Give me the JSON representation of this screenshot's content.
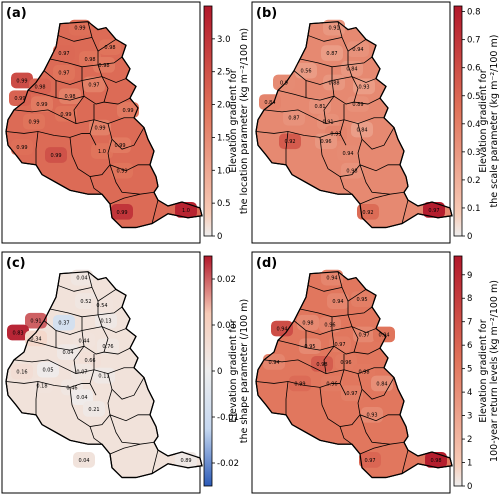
{
  "colors": {
    "frame": "#000000",
    "red_high": "#b2182b",
    "red_mid": "#e0735a",
    "red_low": "#f7cbb7",
    "neutral": "#eeeeee",
    "blue_low": "#c6d8f0",
    "blue_high": "#2c5bb8"
  },
  "panels": [
    {
      "label": "(a)",
      "colorbar_label_line1": "Elevation gradient for",
      "colorbar_label_line2": "the location parameter (kg m⁻²/100 m)",
      "scale": {
        "type": "sequential",
        "min": 0,
        "max": 3.5
      },
      "ticks": [
        "0",
        "0.5",
        "1.0",
        "1.5",
        "2.0",
        "2.5",
        "3.0"
      ],
      "regions": [
        {
          "label": "0.99",
          "value": 2.0
        },
        {
          "label": "0.98",
          "value": 1.9
        },
        {
          "label": "0.97",
          "value": 2.1
        },
        {
          "label": "0.98",
          "value": 1.9
        },
        {
          "label": "0.98",
          "value": 1.8
        },
        {
          "label": "0.97",
          "value": 1.9
        },
        {
          "label": "0.99",
          "value": 2.6
        },
        {
          "label": "0.98",
          "value": 2.2
        },
        {
          "label": "0.97",
          "value": 1.7
        },
        {
          "label": "0.98",
          "value": 1.7
        },
        {
          "label": "0.99",
          "value": 1.8
        },
        {
          "label": "0.99",
          "value": 2.2
        },
        {
          "label": "0.99",
          "value": 1.9
        },
        {
          "label": "0.99",
          "value": 1.9
        },
        {
          "label": "0.99",
          "value": 1.7
        },
        {
          "label": "0.99",
          "value": 1.8
        },
        {
          "label": "0.99",
          "value": 2.0
        },
        {
          "label": "0.99",
          "value": 2.5
        },
        {
          "label": "1.0",
          "value": 1.9
        },
        {
          "label": "0.99",
          "value": 1.8
        },
        {
          "label": "0.99",
          "value": 1.9
        },
        {
          "label": "0.99",
          "value": 3.0
        },
        {
          "label": "1.0",
          "value": 3.3
        }
      ]
    },
    {
      "label": "(b)",
      "colorbar_label_line1": "Elevation gradient for",
      "colorbar_label_line2": "the scale parameter (kg m⁻²/100 m)",
      "scale": {
        "type": "sequential",
        "min": 0,
        "max": 0.82
      },
      "ticks": [
        "0",
        "0.1",
        "0.2",
        "0.3",
        "0.4",
        "0.5",
        "0.6",
        "0.7",
        "0.8"
      ],
      "regions": [
        {
          "label": "0.91",
          "value": 0.3
        },
        {
          "label": "0.87",
          "value": 0.28
        },
        {
          "label": "0.94",
          "value": 0.32
        },
        {
          "label": "0.56",
          "value": 0.28
        },
        {
          "label": "0.84",
          "value": 0.3
        },
        {
          "label": "0.9",
          "value": 0.35
        },
        {
          "label": "0.88",
          "value": 0.3
        },
        {
          "label": "0.93",
          "value": 0.28
        },
        {
          "label": "0.89",
          "value": 0.33
        },
        {
          "label": "0.81",
          "value": 0.32
        },
        {
          "label": "0.84",
          "value": 0.38
        },
        {
          "label": "0.87",
          "value": 0.32
        },
        {
          "label": "0.91",
          "value": 0.33
        },
        {
          "label": "0.93",
          "value": 0.38
        },
        {
          "label": "0.84",
          "value": 0.27
        },
        {
          "label": "0.92",
          "value": 0.55
        },
        {
          "label": "0.96",
          "value": 0.3
        },
        {
          "label": "0.94",
          "value": 0.35
        },
        {
          "label": "0.98",
          "value": 0.32
        },
        {
          "label": "0.92",
          "value": 0.48
        },
        {
          "label": "0.97",
          "value": 0.8
        }
      ]
    },
    {
      "label": "(c)",
      "colorbar_label_line1": "Elevation gradient for",
      "colorbar_label_line2": "the shape parameter (/100 m)",
      "scale": {
        "type": "diverging",
        "min": -0.025,
        "max": 0.025
      },
      "ticks": [
        "-0.02",
        "-0.01",
        "0",
        "0.01",
        "0.02"
      ],
      "regions": [
        {
          "label": "0.04",
          "value": 0.003
        },
        {
          "label": "0.52",
          "value": 0.003
        },
        {
          "label": "0.54",
          "value": 0.004
        },
        {
          "label": "0.91",
          "value": 0.02
        },
        {
          "label": "0.37",
          "value": -0.008
        },
        {
          "label": "0.13",
          "value": 0.002
        },
        {
          "label": "0.83",
          "value": 0.024
        },
        {
          "label": "0.34",
          "value": 0.008
        },
        {
          "label": "0.44",
          "value": 0.004
        },
        {
          "label": "0.76",
          "value": 0.003
        },
        {
          "label": "0.04",
          "value": 0.002
        },
        {
          "label": "0.66",
          "value": 0.005
        },
        {
          "label": "0.16",
          "value": 0.006
        },
        {
          "label": "0.05",
          "value": 0.001
        },
        {
          "label": "0.07",
          "value": 0.003
        },
        {
          "label": "0.11",
          "value": 0.002
        },
        {
          "label": "0.18",
          "value": 0.004
        },
        {
          "label": "0.46",
          "value": 0.003
        },
        {
          "label": "0.04",
          "value": 0.001
        },
        {
          "label": "0.21",
          "value": 0.002
        },
        {
          "label": "0.04",
          "value": 0.004
        },
        {
          "label": "0.89",
          "value": 0.002
        }
      ]
    },
    {
      "label": "(d)",
      "colorbar_label_line1": "Elevation gradient for",
      "colorbar_label_line2": "100-year return levels (kg m⁻²/100 m)",
      "scale": {
        "type": "sequential",
        "min": 0,
        "max": 9.8
      },
      "ticks": [
        "0",
        "1",
        "2",
        "3",
        "4",
        "5",
        "6",
        "7",
        "8",
        "9"
      ],
      "regions": [
        {
          "label": "0.94",
          "value": 4.5
        },
        {
          "label": "0.94",
          "value": 4.5
        },
        {
          "label": "0.95",
          "value": 4.8
        },
        {
          "label": "0.98",
          "value": 4.3
        },
        {
          "label": "0.96",
          "value": 4.6
        },
        {
          "label": "0.94",
          "value": 7.2
        },
        {
          "label": "0.97",
          "value": 4.4
        },
        {
          "label": "0.97",
          "value": 4.9
        },
        {
          "label": "0.95",
          "value": 4.3
        },
        {
          "label": "0.94",
          "value": 5.3
        },
        {
          "label": "0.98",
          "value": 6.5
        },
        {
          "label": "0.94",
          "value": 4.5
        },
        {
          "label": "0.96",
          "value": 5.0
        },
        {
          "label": "0.98",
          "value": 5.1
        },
        {
          "label": "0.84",
          "value": 4.0
        },
        {
          "label": "0.99",
          "value": 5.8
        },
        {
          "label": "0.96",
          "value": 5.0
        },
        {
          "label": "0.97",
          "value": 4.8
        },
        {
          "label": "0.93",
          "value": 4.3
        },
        {
          "label": "0.97",
          "value": 6.0
        },
        {
          "label": "0.98",
          "value": 9.5
        }
      ]
    }
  ]
}
